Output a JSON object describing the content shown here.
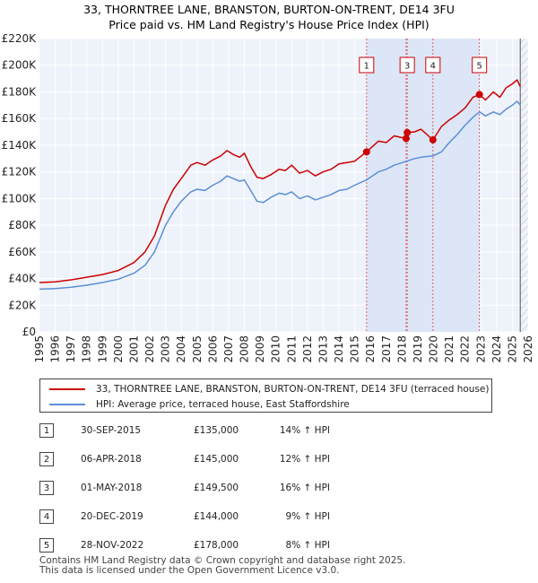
{
  "chart_data": {
    "type": "line",
    "title": "33, THORNTREE LANE, BRANSTON, BURTON-ON-TRENT, DE14 3FU",
    "subtitle": "Price paid vs. HM Land Registry's House Price Index (HPI)",
    "xlabel": "",
    "ylabel": "",
    "xlim": [
      1995,
      2026
    ],
    "ylim": [
      0,
      220000
    ],
    "y_ticks": [
      {
        "value": 0,
        "label": "£0"
      },
      {
        "value": 20000,
        "label": "£20K"
      },
      {
        "value": 40000,
        "label": "£40K"
      },
      {
        "value": 60000,
        "label": "£60K"
      },
      {
        "value": 80000,
        "label": "£80K"
      },
      {
        "value": 100000,
        "label": "£100K"
      },
      {
        "value": 120000,
        "label": "£120K"
      },
      {
        "value": 140000,
        "label": "£140K"
      },
      {
        "value": 160000,
        "label": "£160K"
      },
      {
        "value": 180000,
        "label": "£180K"
      },
      {
        "value": 200000,
        "label": "£200K"
      },
      {
        "value": 220000,
        "label": "£220K"
      }
    ],
    "x_ticks": [
      "1995",
      "1996",
      "1997",
      "1998",
      "1999",
      "2000",
      "2001",
      "2002",
      "2003",
      "2004",
      "2005",
      "2006",
      "2007",
      "2008",
      "2009",
      "2010",
      "2011",
      "2012",
      "2013",
      "2014",
      "2015",
      "2016",
      "2017",
      "2018",
      "2019",
      "2020",
      "2021",
      "2022",
      "2023",
      "2024",
      "2025",
      "2026"
    ],
    "grid": true,
    "future_hatch_from": 2025.5,
    "series": [
      {
        "name": "33, THORNTREE LANE, BRANSTON, BURTON-ON-TRENT, DE14 3FU (terraced house)",
        "color": "#cc0000",
        "points": [
          [
            1995.0,
            37000
          ],
          [
            1996.0,
            37500
          ],
          [
            1997.0,
            39000
          ],
          [
            1998.0,
            41000
          ],
          [
            1999.0,
            43000
          ],
          [
            2000.0,
            46000
          ],
          [
            2001.0,
            52000
          ],
          [
            2001.7,
            60000
          ],
          [
            2002.3,
            72000
          ],
          [
            2003.0,
            95000
          ],
          [
            2003.5,
            107000
          ],
          [
            2004.0,
            115000
          ],
          [
            2004.6,
            125000
          ],
          [
            2005.0,
            127000
          ],
          [
            2005.5,
            125000
          ],
          [
            2006.0,
            129000
          ],
          [
            2006.5,
            132000
          ],
          [
            2006.9,
            136000
          ],
          [
            2007.3,
            133000
          ],
          [
            2007.7,
            131000
          ],
          [
            2008.0,
            134000
          ],
          [
            2008.4,
            124000
          ],
          [
            2008.8,
            116000
          ],
          [
            2009.2,
            115000
          ],
          [
            2009.7,
            118000
          ],
          [
            2010.2,
            122000
          ],
          [
            2010.6,
            121000
          ],
          [
            2011.0,
            125000
          ],
          [
            2011.5,
            119000
          ],
          [
            2012.0,
            121000
          ],
          [
            2012.5,
            117000
          ],
          [
            2013.0,
            120000
          ],
          [
            2013.5,
            122000
          ],
          [
            2014.0,
            126000
          ],
          [
            2014.5,
            127000
          ],
          [
            2015.0,
            128000
          ],
          [
            2015.75,
            135000
          ],
          [
            2016.5,
            143000
          ],
          [
            2017.0,
            142000
          ],
          [
            2017.5,
            147000
          ],
          [
            2018.26,
            145000
          ],
          [
            2018.33,
            149500
          ],
          [
            2018.8,
            150000
          ],
          [
            2019.2,
            152000
          ],
          [
            2019.96,
            144000
          ],
          [
            2020.5,
            154000
          ],
          [
            2021.0,
            159000
          ],
          [
            2021.5,
            163000
          ],
          [
            2022.0,
            168000
          ],
          [
            2022.5,
            176000
          ],
          [
            2022.91,
            178000
          ],
          [
            2023.3,
            174000
          ],
          [
            2023.8,
            180000
          ],
          [
            2024.2,
            176000
          ],
          [
            2024.6,
            183000
          ],
          [
            2025.0,
            186000
          ],
          [
            2025.3,
            189000
          ],
          [
            2025.5,
            184000
          ]
        ]
      },
      {
        "name": "HPI: Average price, terraced house, East Staffordshire",
        "color": "#5b8fd6",
        "points": [
          [
            1995.0,
            32000
          ],
          [
            1996.0,
            32500
          ],
          [
            1997.0,
            33500
          ],
          [
            1998.0,
            35000
          ],
          [
            1999.0,
            37000
          ],
          [
            2000.0,
            39500
          ],
          [
            2001.0,
            44000
          ],
          [
            2001.7,
            50000
          ],
          [
            2002.3,
            60000
          ],
          [
            2003.0,
            80000
          ],
          [
            2003.5,
            90000
          ],
          [
            2004.0,
            98000
          ],
          [
            2004.6,
            105000
          ],
          [
            2005.0,
            107000
          ],
          [
            2005.5,
            106000
          ],
          [
            2006.0,
            110000
          ],
          [
            2006.5,
            113000
          ],
          [
            2006.9,
            117000
          ],
          [
            2007.3,
            115000
          ],
          [
            2007.7,
            113000
          ],
          [
            2008.0,
            114000
          ],
          [
            2008.4,
            106000
          ],
          [
            2008.8,
            98000
          ],
          [
            2009.2,
            97000
          ],
          [
            2009.7,
            101000
          ],
          [
            2010.2,
            104000
          ],
          [
            2010.6,
            103000
          ],
          [
            2011.0,
            105000
          ],
          [
            2011.5,
            100000
          ],
          [
            2012.0,
            102000
          ],
          [
            2012.5,
            99000
          ],
          [
            2013.0,
            101000
          ],
          [
            2013.5,
            103000
          ],
          [
            2014.0,
            106000
          ],
          [
            2014.5,
            107000
          ],
          [
            2015.0,
            110000
          ],
          [
            2015.75,
            114000
          ],
          [
            2016.5,
            120000
          ],
          [
            2017.0,
            122000
          ],
          [
            2017.5,
            125000
          ],
          [
            2018.3,
            128000
          ],
          [
            2018.8,
            130000
          ],
          [
            2019.2,
            131000
          ],
          [
            2019.96,
            132000
          ],
          [
            2020.5,
            135000
          ],
          [
            2021.0,
            142000
          ],
          [
            2021.5,
            148000
          ],
          [
            2022.0,
            155000
          ],
          [
            2022.5,
            161000
          ],
          [
            2022.91,
            165000
          ],
          [
            2023.3,
            162000
          ],
          [
            2023.8,
            165000
          ],
          [
            2024.2,
            163000
          ],
          [
            2024.6,
            167000
          ],
          [
            2025.0,
            170000
          ],
          [
            2025.3,
            173000
          ],
          [
            2025.5,
            170000
          ]
        ]
      }
    ],
    "sales": [
      {
        "n": "1",
        "x": 2015.75,
        "value": 135000
      },
      {
        "n": "2",
        "x": 2018.26,
        "value": 145000
      },
      {
        "n": "3",
        "x": 2018.33,
        "value": 149500
      },
      {
        "n": "4",
        "x": 2019.96,
        "value": 144000
      },
      {
        "n": "5",
        "x": 2022.91,
        "value": 178000
      }
    ],
    "label_boxes": [
      {
        "n": "1",
        "x": 2015.75
      },
      {
        "n": "3",
        "x": 2018.33
      },
      {
        "n": "4",
        "x": 2019.96
      },
      {
        "n": "5",
        "x": 2022.91
      }
    ]
  },
  "legend": {
    "property_label": "33, THORNTREE LANE, BRANSTON, BURTON-ON-TRENT, DE14 3FU (terraced house)",
    "hpi_label": "HPI: Average price, terraced house, East Staffordshire",
    "property_color": "#cc0000",
    "hpi_color": "#5b8fd6"
  },
  "sales_table": [
    {
      "n": "1",
      "date": "30-SEP-2015",
      "price": "£135,000",
      "hpi": "14% ↑ HPI"
    },
    {
      "n": "2",
      "date": "06-APR-2018",
      "price": "£145,000",
      "hpi": "12% ↑ HPI"
    },
    {
      "n": "3",
      "date": "01-MAY-2018",
      "price": "£149,500",
      "hpi": "16% ↑ HPI"
    },
    {
      "n": "4",
      "date": "20-DEC-2019",
      "price": "£144,000",
      "hpi": "9% ↑ HPI"
    },
    {
      "n": "5",
      "date": "28-NOV-2022",
      "price": "£178,000",
      "hpi": "8% ↑ HPI"
    }
  ],
  "footer": {
    "line1": "Contains HM Land Registry data © Crown copyright and database right 2025.",
    "line2": "This data is licensed under the Open Government Licence v3.0."
  }
}
